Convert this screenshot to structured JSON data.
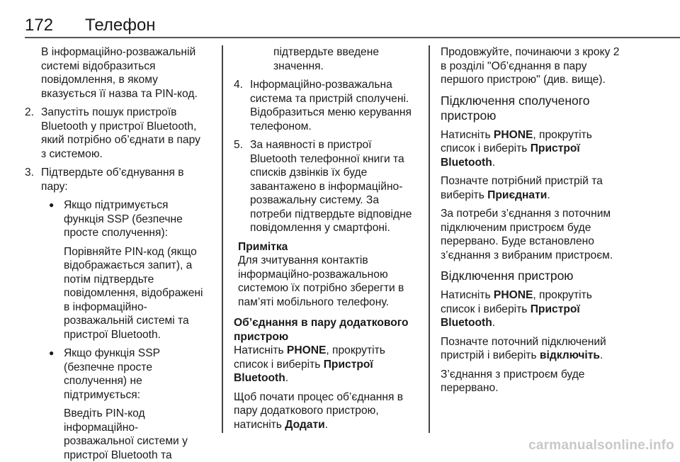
{
  "header": {
    "page_number": "172",
    "title": "Телефон"
  },
  "columns": [
    {
      "blocks": [
        {
          "type": "cont",
          "indent": 23,
          "lines": [
            [
              "В інформаційно-розважальній"
            ],
            [
              "системі відобразиться"
            ],
            [
              "повідомлення, в якому"
            ],
            [
              "вказується її назва та PIN-код."
            ]
          ]
        },
        {
          "type": "num",
          "label": "2.",
          "indent": 23,
          "lines": [
            [
              "Запустіть пошук пристроїв"
            ],
            [
              "Bluetooth у пристрої Bluetooth,"
            ],
            [
              "який потрібно об’єднати в пару"
            ],
            [
              "з системою."
            ]
          ]
        },
        {
          "type": "num",
          "label": "3.",
          "indent": 23,
          "lines": [
            [
              "Підтвердьте об’єднування в"
            ],
            [
              "пару:"
            ]
          ]
        },
        {
          "type": "bullet",
          "label": "●",
          "indent": 55,
          "lines": [
            [
              "Якщо підтримується"
            ],
            [
              "функція SSP (безпечне"
            ],
            [
              "просте сполучення):"
            ]
          ]
        },
        {
          "type": "cont",
          "indent": 55,
          "lines": [
            [
              "Порівняйте PIN-код (якщо"
            ],
            [
              "відображається запит), а"
            ],
            [
              "потім підтвердьте"
            ],
            [
              "повідомлення, відображені"
            ],
            [
              "в інформаційно-"
            ],
            [
              "розважальній системі та"
            ],
            [
              "пристрої Bluetooth."
            ]
          ]
        },
        {
          "type": "bullet",
          "label": "●",
          "indent": 55,
          "lines": [
            [
              "Якщо функція SSP"
            ],
            [
              "(безпечне просте"
            ],
            [
              "сполучення) не"
            ],
            [
              "підтримується:"
            ]
          ]
        },
        {
          "type": "cont",
          "indent": 55,
          "lines": [
            [
              "Введіть PIN-код"
            ],
            [
              "інформаційно-"
            ],
            [
              "розважальної системи у"
            ],
            [
              "пристрої Bluetooth та"
            ]
          ]
        }
      ]
    },
    {
      "blocks": [
        {
          "type": "cont",
          "indent": 56,
          "lines": [
            [
              "підтвердьте введене"
            ],
            [
              "значення."
            ]
          ]
        },
        {
          "type": "num",
          "label": "4.",
          "indent": 23,
          "lines": [
            [
              "Інформаційно-розважальна"
            ],
            [
              "система та пристрій сполучені."
            ],
            [
              "Відобразиться меню керування"
            ],
            [
              "телефоном."
            ]
          ]
        },
        {
          "type": "num",
          "label": "5.",
          "indent": 23,
          "lines": [
            [
              "За наявності в пристрої"
            ],
            [
              "Bluetooth телефонної книги та"
            ],
            [
              "списків дзвінків їх буде"
            ],
            [
              "завантажено в інформаційно-"
            ],
            [
              "розважальну систему. За"
            ],
            [
              "потреби підтвердьте відповідне"
            ],
            [
              "повідомлення у смартфоні."
            ]
          ]
        },
        {
          "type": "note",
          "indent": 6,
          "title": "Примітка",
          "lines": [
            [
              "Для зчитування контактів"
            ],
            [
              "інформаційно-розважальною"
            ],
            [
              "системою їх потрібно зберегти в"
            ],
            [
              "пам’яті мобільного телефону."
            ]
          ]
        },
        {
          "type": "h2",
          "indent": 0,
          "lines": [
            [
              "Об’єднання в пару додаткового"
            ],
            [
              "пристрою"
            ]
          ]
        },
        {
          "type": "cont",
          "indent": 0,
          "tight": true,
          "lines": [
            [
              "Натисніть ",
              {
                "b": "PHONE"
              },
              ", прокрутіть"
            ],
            [
              "список і виберіть ",
              {
                "b": "Пристрої"
              }
            ],
            [
              {
                "b": "Bluetooth"
              },
              "."
            ]
          ]
        },
        {
          "type": "cont",
          "indent": 0,
          "lines": [
            [
              "Щоб почати процес об’єднання в"
            ],
            [
              "пару додаткового пристрою,"
            ],
            [
              "натисніть ",
              {
                "b": "Додати"
              },
              "."
            ]
          ]
        }
      ]
    },
    {
      "blocks": [
        {
          "type": "cont",
          "indent": 0,
          "lines": [
            [
              "Продовжуйте, починаючи з кроку 2"
            ],
            [
              "в розділі \"Об’єднання в пару"
            ],
            [
              "першого пристрою\" (див. вище)."
            ]
          ]
        },
        {
          "type": "h1",
          "indent": 0,
          "lines": [
            [
              "Підключення сполученого"
            ],
            [
              "пристрою"
            ]
          ]
        },
        {
          "type": "cont",
          "indent": 0,
          "lines": [
            [
              "Натисніть ",
              {
                "b": "PHONE"
              },
              ", прокрутіть"
            ],
            [
              "список і виберіть ",
              {
                "b": "Пристрої"
              }
            ],
            [
              {
                "b": "Bluetooth"
              },
              "."
            ]
          ]
        },
        {
          "type": "cont",
          "indent": 0,
          "lines": [
            [
              "Позначте потрібний пристрій та"
            ],
            [
              "виберіть ",
              {
                "b": "Приєднати"
              },
              "."
            ]
          ]
        },
        {
          "type": "cont",
          "indent": 0,
          "lines": [
            [
              "За потреби з’єднання з поточним"
            ],
            [
              "підключеним пристроєм буде"
            ],
            [
              "перервано. Буде встановлено"
            ],
            [
              "з’єднання з вибраним пристроєм."
            ]
          ]
        },
        {
          "type": "h1",
          "indent": 0,
          "lines": [
            [
              "Відключення пристрою"
            ]
          ]
        },
        {
          "type": "cont",
          "indent": 0,
          "lines": [
            [
              "Натисніть ",
              {
                "b": "PHONE"
              },
              ", прокрутіть"
            ],
            [
              "список і виберіть ",
              {
                "b": "Пристрої"
              }
            ],
            [
              {
                "b": "Bluetooth"
              },
              "."
            ]
          ]
        },
        {
          "type": "cont",
          "indent": 0,
          "lines": [
            [
              "Позначте поточний підключений"
            ],
            [
              "пристрій і виберіть ",
              {
                "b": "відключіть"
              },
              "."
            ]
          ]
        },
        {
          "type": "cont",
          "indent": 0,
          "lines": [
            [
              "З’єднання з пристроєм буде"
            ],
            [
              "перервано."
            ]
          ]
        }
      ]
    }
  ],
  "watermark": "carmanualsonline.info"
}
